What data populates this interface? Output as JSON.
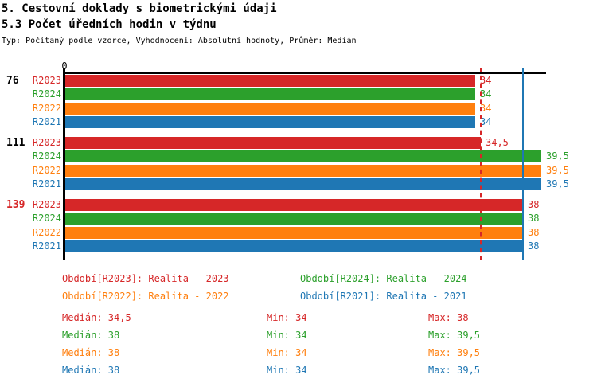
{
  "header": {
    "title": "5. Cestovní doklady s biometrickými údaji",
    "subtitle": "5.3 Počet úředních hodin v týdnu",
    "meta": "Typ: Počítaný podle vzorce, Vyhodnocení: Absolutní hodnoty, Průměr: Medián"
  },
  "palette": {
    "R2023": "#d62728",
    "R2024": "#2ca02c",
    "R2022": "#ff7f0e",
    "R2021": "#1f77b4",
    "axis": "#000000"
  },
  "chart_data": {
    "type": "bar",
    "orientation": "horizontal-grouped",
    "axis": {
      "origin_label": "0",
      "x_min": 0,
      "x_max": 40,
      "grid": false
    },
    "series_order": [
      "R2023",
      "R2024",
      "R2022",
      "R2021"
    ],
    "series_colors": {
      "R2023": "#d62728",
      "R2024": "#2ca02c",
      "R2022": "#ff7f0e",
      "R2021": "#1f77b4"
    },
    "groups": [
      {
        "label": "76",
        "label_color": "#000000",
        "bars": [
          {
            "series": "R2023",
            "value": 34,
            "value_label": "34"
          },
          {
            "series": "R2024",
            "value": 34,
            "value_label": "34"
          },
          {
            "series": "R2022",
            "value": 34,
            "value_label": "34"
          },
          {
            "series": "R2021",
            "value": 34,
            "value_label": "34"
          }
        ]
      },
      {
        "label": "111",
        "label_color": "#000000",
        "bars": [
          {
            "series": "R2023",
            "value": 34.5,
            "value_label": "34,5"
          },
          {
            "series": "R2024",
            "value": 39.5,
            "value_label": "39,5"
          },
          {
            "series": "R2022",
            "value": 39.5,
            "value_label": "39,5"
          },
          {
            "series": "R2021",
            "value": 39.5,
            "value_label": "39,5"
          }
        ]
      },
      {
        "label": "139",
        "label_color": "#d62728",
        "bars": [
          {
            "series": "R2023",
            "value": 38,
            "value_label": "38"
          },
          {
            "series": "R2024",
            "value": 38,
            "value_label": "38"
          },
          {
            "series": "R2022",
            "value": 38,
            "value_label": "38"
          },
          {
            "series": "R2021",
            "value": 38,
            "value_label": "38"
          }
        ]
      }
    ],
    "reference_lines": [
      {
        "value": 34.5,
        "color": "#d62728",
        "style": "dashed",
        "meaning": "median R2023"
      },
      {
        "value": 38,
        "color": "#1f77b4",
        "style": "solid",
        "meaning": "median R2021"
      }
    ]
  },
  "legend": {
    "items": [
      {
        "text": "Období[R2023]: Realita - 2023",
        "series": "R2023",
        "color": "#d62728"
      },
      {
        "text": "Období[R2024]: Realita - 2024",
        "series": "R2024",
        "color": "#2ca02c"
      },
      {
        "text": "Období[R2022]: Realita - 2022",
        "series": "R2022",
        "color": "#ff7f0e"
      },
      {
        "text": "Období[R2021]: Realita - 2021",
        "series": "R2021",
        "color": "#1f77b4"
      }
    ]
  },
  "stats": {
    "rows": [
      {
        "series": "R2023",
        "color": "#d62728",
        "cells": [
          "Medián: 34,5",
          "Min: 34",
          "Max: 38"
        ]
      },
      {
        "series": "R2024",
        "color": "#2ca02c",
        "cells": [
          "Medián: 38",
          "Min: 34",
          "Max: 39,5"
        ]
      },
      {
        "series": "R2022",
        "color": "#ff7f0e",
        "cells": [
          "Medián: 38",
          "Min: 34",
          "Max: 39,5"
        ]
      },
      {
        "series": "R2021",
        "color": "#1f77b4",
        "cells": [
          "Medián: 38",
          "Min: 34",
          "Max: 39,5"
        ]
      }
    ]
  }
}
